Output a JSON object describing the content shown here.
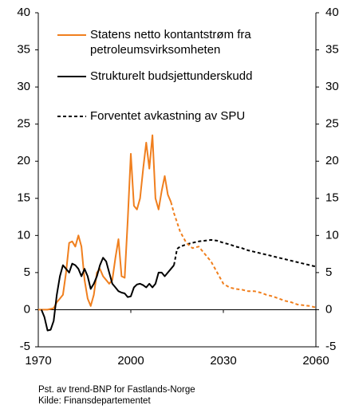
{
  "chart_data": {
    "type": "line",
    "xlim": [
      1970,
      2060
    ],
    "xticks": [
      1970,
      2000,
      2030,
      2060
    ],
    "ylim": [
      -5,
      40
    ],
    "yticks": [
      -5,
      0,
      5,
      10,
      15,
      20,
      25,
      30,
      35,
      40
    ],
    "y2lim": [
      -5,
      40
    ],
    "y2ticks": [
      -5,
      0,
      5,
      10,
      15,
      20,
      25,
      30,
      35,
      40
    ],
    "notes": [
      "Pst. av trend-BNP for Fastlands-Norge",
      "Kilde: Finansdepartementet"
    ],
    "series": [
      {
        "name": "Statens netto kontantstrøm fra petroleumsvirksomheten",
        "color": "#f07f1e",
        "dashed": false,
        "x": [
          1970,
          1971,
          1972,
          1973,
          1974,
          1975,
          1976,
          1977,
          1978,
          1979,
          1980,
          1981,
          1982,
          1983,
          1984,
          1985,
          1986,
          1987,
          1988,
          1989,
          1990,
          1991,
          1992,
          1993,
          1994,
          1995,
          1996,
          1997,
          1998,
          1999,
          2000,
          2001,
          2002,
          2003,
          2004,
          2005,
          2006,
          2007,
          2008,
          2009,
          2010,
          2011,
          2012,
          2013
        ],
        "values": [
          0,
          0,
          0,
          0,
          0.1,
          0.2,
          1,
          1.5,
          2,
          5,
          9,
          9.2,
          8.5,
          10,
          8.5,
          4,
          1.5,
          0.5,
          2,
          5,
          5.5,
          4.5,
          4,
          3.5,
          4,
          7,
          9.5,
          4.5,
          4.3,
          12,
          21,
          14,
          13.5,
          15,
          19,
          22.5,
          19,
          23.5,
          15,
          13.5,
          16,
          18,
          15.5,
          14.5
        ]
      },
      {
        "name": "Strukturelt budsjettunderskudd",
        "color": "#000000",
        "dashed": false,
        "x": [
          1971,
          1972,
          1973,
          1974,
          1975,
          1976,
          1977,
          1978,
          1979,
          1980,
          1981,
          1982,
          1983,
          1984,
          1985,
          1986,
          1987,
          1988,
          1989,
          1990,
          1991,
          1992,
          1993,
          1994,
          1995,
          1996,
          1997,
          1998,
          1999,
          2000,
          2001,
          2002,
          2003,
          2004,
          2005,
          2006,
          2007,
          2008,
          2009,
          2010,
          2011,
          2012,
          2013,
          2014
        ],
        "values": [
          0,
          -1,
          -2.8,
          -2.7,
          -1.5,
          2,
          4.5,
          6,
          5.5,
          5,
          6.2,
          6,
          5.5,
          4.5,
          5.5,
          4.5,
          2.8,
          3.5,
          4.5,
          6,
          7,
          6.5,
          5,
          3.5,
          3,
          2.5,
          2.3,
          2.2,
          1.7,
          1.8,
          3,
          3.4,
          3.5,
          3.3,
          3,
          3.5,
          3,
          3.5,
          5,
          5,
          4.5,
          5,
          5.5,
          6
        ]
      },
      {
        "name": "Forventet avkastning av SPU",
        "color": "#000000",
        "dashed": true,
        "x": [
          2014,
          2015,
          2016,
          2018,
          2020,
          2022,
          2024,
          2026,
          2028,
          2030,
          2032,
          2034,
          2036,
          2038,
          2040,
          2042,
          2044,
          2046,
          2048,
          2050,
          2052,
          2054,
          2056,
          2058,
          2060
        ],
        "values": [
          6,
          8.2,
          8.5,
          8.8,
          9,
          9.2,
          9.3,
          9.4,
          9.3,
          9,
          8.8,
          8.5,
          8.3,
          8,
          7.8,
          7.6,
          7.4,
          7.2,
          7,
          6.8,
          6.6,
          6.4,
          6.2,
          6,
          5.8
        ]
      },
      {
        "color": "#f07f1e",
        "dashed": true,
        "x": [
          2013,
          2014,
          2016,
          2018,
          2020,
          2022,
          2024,
          2026,
          2028,
          2030,
          2032,
          2034,
          2036,
          2038,
          2040,
          2042,
          2044,
          2046,
          2048,
          2050,
          2052,
          2054,
          2056,
          2058,
          2060
        ],
        "values": [
          14.5,
          13,
          10.5,
          9,
          8.3,
          8.5,
          7.5,
          6.5,
          5,
          3.5,
          3,
          2.8,
          2.7,
          2.5,
          2.5,
          2.3,
          2,
          1.8,
          1.5,
          1.2,
          1,
          0.7,
          0.6,
          0.5,
          0.3
        ]
      }
    ]
  }
}
